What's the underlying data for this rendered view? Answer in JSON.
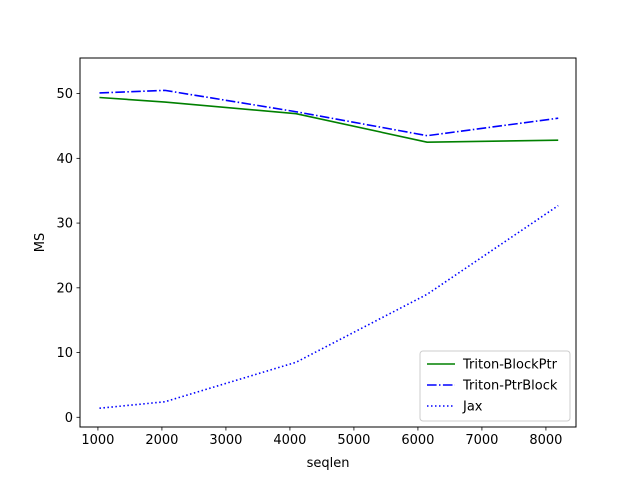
{
  "chart_data": {
    "type": "line",
    "xlabel": "seqlen",
    "ylabel": "MS",
    "xlim": [
      720,
      8470
    ],
    "ylim": [
      -1.5,
      55.5
    ],
    "xticks": [
      1000,
      2000,
      3000,
      4000,
      5000,
      6000,
      7000,
      8000
    ],
    "yticks": [
      0,
      10,
      20,
      30,
      40,
      50
    ],
    "grid": false,
    "legend_position": "lower-right",
    "series": [
      {
        "name": "Triton-BlockPtr",
        "color": "#008000",
        "line_style": "solid",
        "x": [
          1024,
          2048,
          4096,
          6144,
          8192
        ],
        "y": [
          49.4,
          48.7,
          46.9,
          42.5,
          42.8
        ]
      },
      {
        "name": "Triton-PtrBlock",
        "color": "#0000ff",
        "line_style": "dashdot",
        "x": [
          1024,
          2048,
          4096,
          6144,
          8192
        ],
        "y": [
          50.1,
          50.5,
          47.2,
          43.5,
          46.2
        ]
      },
      {
        "name": "Jax",
        "color": "#0000ff",
        "line_style": "dotted",
        "x": [
          1024,
          2048,
          4096,
          6144,
          8192
        ],
        "y": [
          1.4,
          2.4,
          8.5,
          19.0,
          32.7
        ]
      }
    ]
  }
}
